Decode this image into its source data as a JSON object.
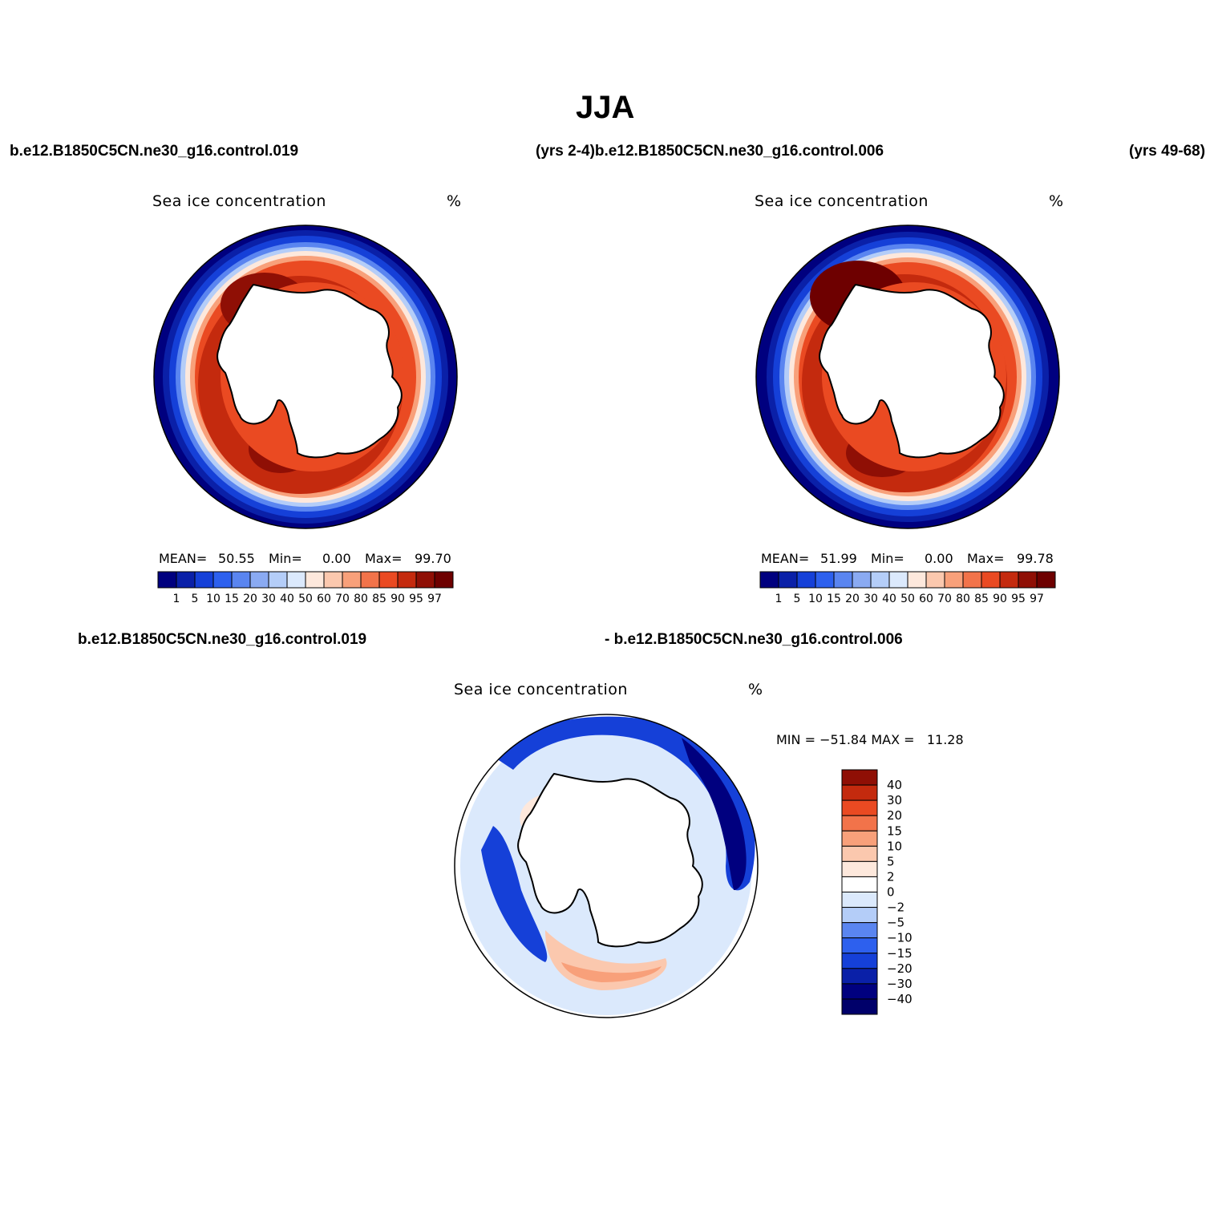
{
  "figure": {
    "title": "JJA",
    "top_left_run": "b.e12.B1850C5CN.ne30_g16.control.019",
    "top_mid_run": "(yrs 2-4)b.e12.B1850C5CN.ne30_g16.control.006",
    "top_right_run": "(yrs 49-68)",
    "bottom_left_run": "b.e12.B1850C5CN.ne30_g16.control.019",
    "bottom_right_run": "- b.e12.B1850C5CN.ne30_g16.control.006"
  },
  "panels": [
    {
      "name": "Sea ice concentration",
      "units": "%",
      "stats": {
        "mean_label": "MEAN=",
        "mean": "50.55",
        "min_label": "Min=",
        "min": "0.00",
        "max_label": "Max=",
        "max": "99.70"
      }
    },
    {
      "name": "Sea ice concentration",
      "units": "%",
      "stats": {
        "mean_label": "MEAN=",
        "mean": "51.99",
        "min_label": "Min=",
        "min": "0.00",
        "max_label": "Max=",
        "max": "99.78"
      }
    },
    {
      "name": "Sea ice concentration",
      "units": "%",
      "stats": {
        "text": "MIN = −51.84 MAX =   11.28"
      }
    }
  ],
  "colorbar_main": {
    "labels": [
      "1",
      "5",
      "10",
      "15",
      "20",
      "30",
      "40",
      "50",
      "60",
      "70",
      "80",
      "85",
      "90",
      "95",
      "97"
    ],
    "colors": [
      "#00007f",
      "#0a20a8",
      "#1540d8",
      "#2d60ee",
      "#5a85f0",
      "#8aaaf2",
      "#b4cdf8",
      "#dbe9fc",
      "#fde8dc",
      "#fbc8ae",
      "#f8a07a",
      "#f2734a",
      "#ea4a22",
      "#c42a0e",
      "#8f0f05",
      "#6e0000"
    ]
  },
  "colorbar_diff": {
    "labels": [
      "40",
      "30",
      "20",
      "15",
      "10",
      "5",
      "2",
      "0",
      "−2",
      "−5",
      "−10",
      "−15",
      "−20",
      "−30",
      "−40"
    ],
    "colors": [
      "#8f0f05",
      "#c42a0e",
      "#ea4a22",
      "#f2734a",
      "#f8a07a",
      "#fbc8ae",
      "#fde8dc",
      "#ffffff",
      "#dbe9fc",
      "#b4cdf8",
      "#5a85f0",
      "#2d60ee",
      "#1540d8",
      "#0a20a8",
      "#00007f",
      "#00006a"
    ]
  }
}
